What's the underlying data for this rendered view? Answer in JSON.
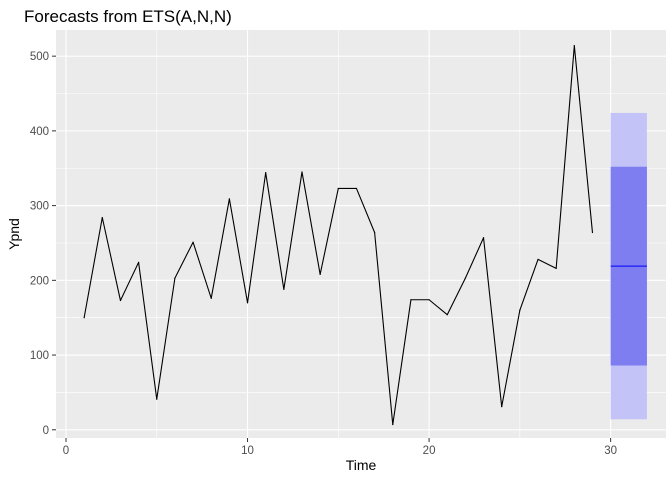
{
  "chart_data": {
    "type": "line",
    "title": "Forecasts from ETS(A,N,N)",
    "xlabel": "Time",
    "ylabel": "Ypnd",
    "xlim": [
      -0.55,
      33.05
    ],
    "ylim": [
      -11,
      535
    ],
    "x_ticks": [
      0,
      10,
      20,
      30
    ],
    "y_ticks": [
      0,
      100,
      200,
      300,
      400,
      500
    ],
    "x_tick_labels": [
      "0",
      "10",
      "20",
      "30"
    ],
    "y_tick_labels": [
      "0",
      "100",
      "200",
      "300",
      "400",
      "500"
    ],
    "grid": true,
    "series": [
      {
        "x": [
          1,
          2,
          3,
          4,
          5,
          6,
          7,
          8,
          9,
          10,
          11,
          12,
          13,
          14,
          15,
          16,
          17,
          18,
          19,
          20,
          21,
          22,
          23,
          24,
          25,
          26,
          27,
          28,
          29
        ],
        "values": [
          150,
          284,
          173,
          224,
          41,
          203,
          251,
          176,
          309,
          170,
          344,
          188,
          345,
          208,
          323,
          323,
          264,
          7,
          174,
          174,
          154,
          203,
          257,
          31,
          160,
          228,
          216,
          514,
          264
        ]
      }
    ],
    "forecast": {
      "x": [
        30,
        32
      ],
      "mean": 219,
      "lower_80": 86,
      "upper_80": 352,
      "lower_95": 14,
      "upper_95": 424
    },
    "colors": {
      "panel": "#ebebeb",
      "grid_major": "#ffffff",
      "series": "#000000",
      "mean": "#0000ff",
      "band_80": "#7e7ef0",
      "band_95": "#c3c3f7"
    }
  }
}
